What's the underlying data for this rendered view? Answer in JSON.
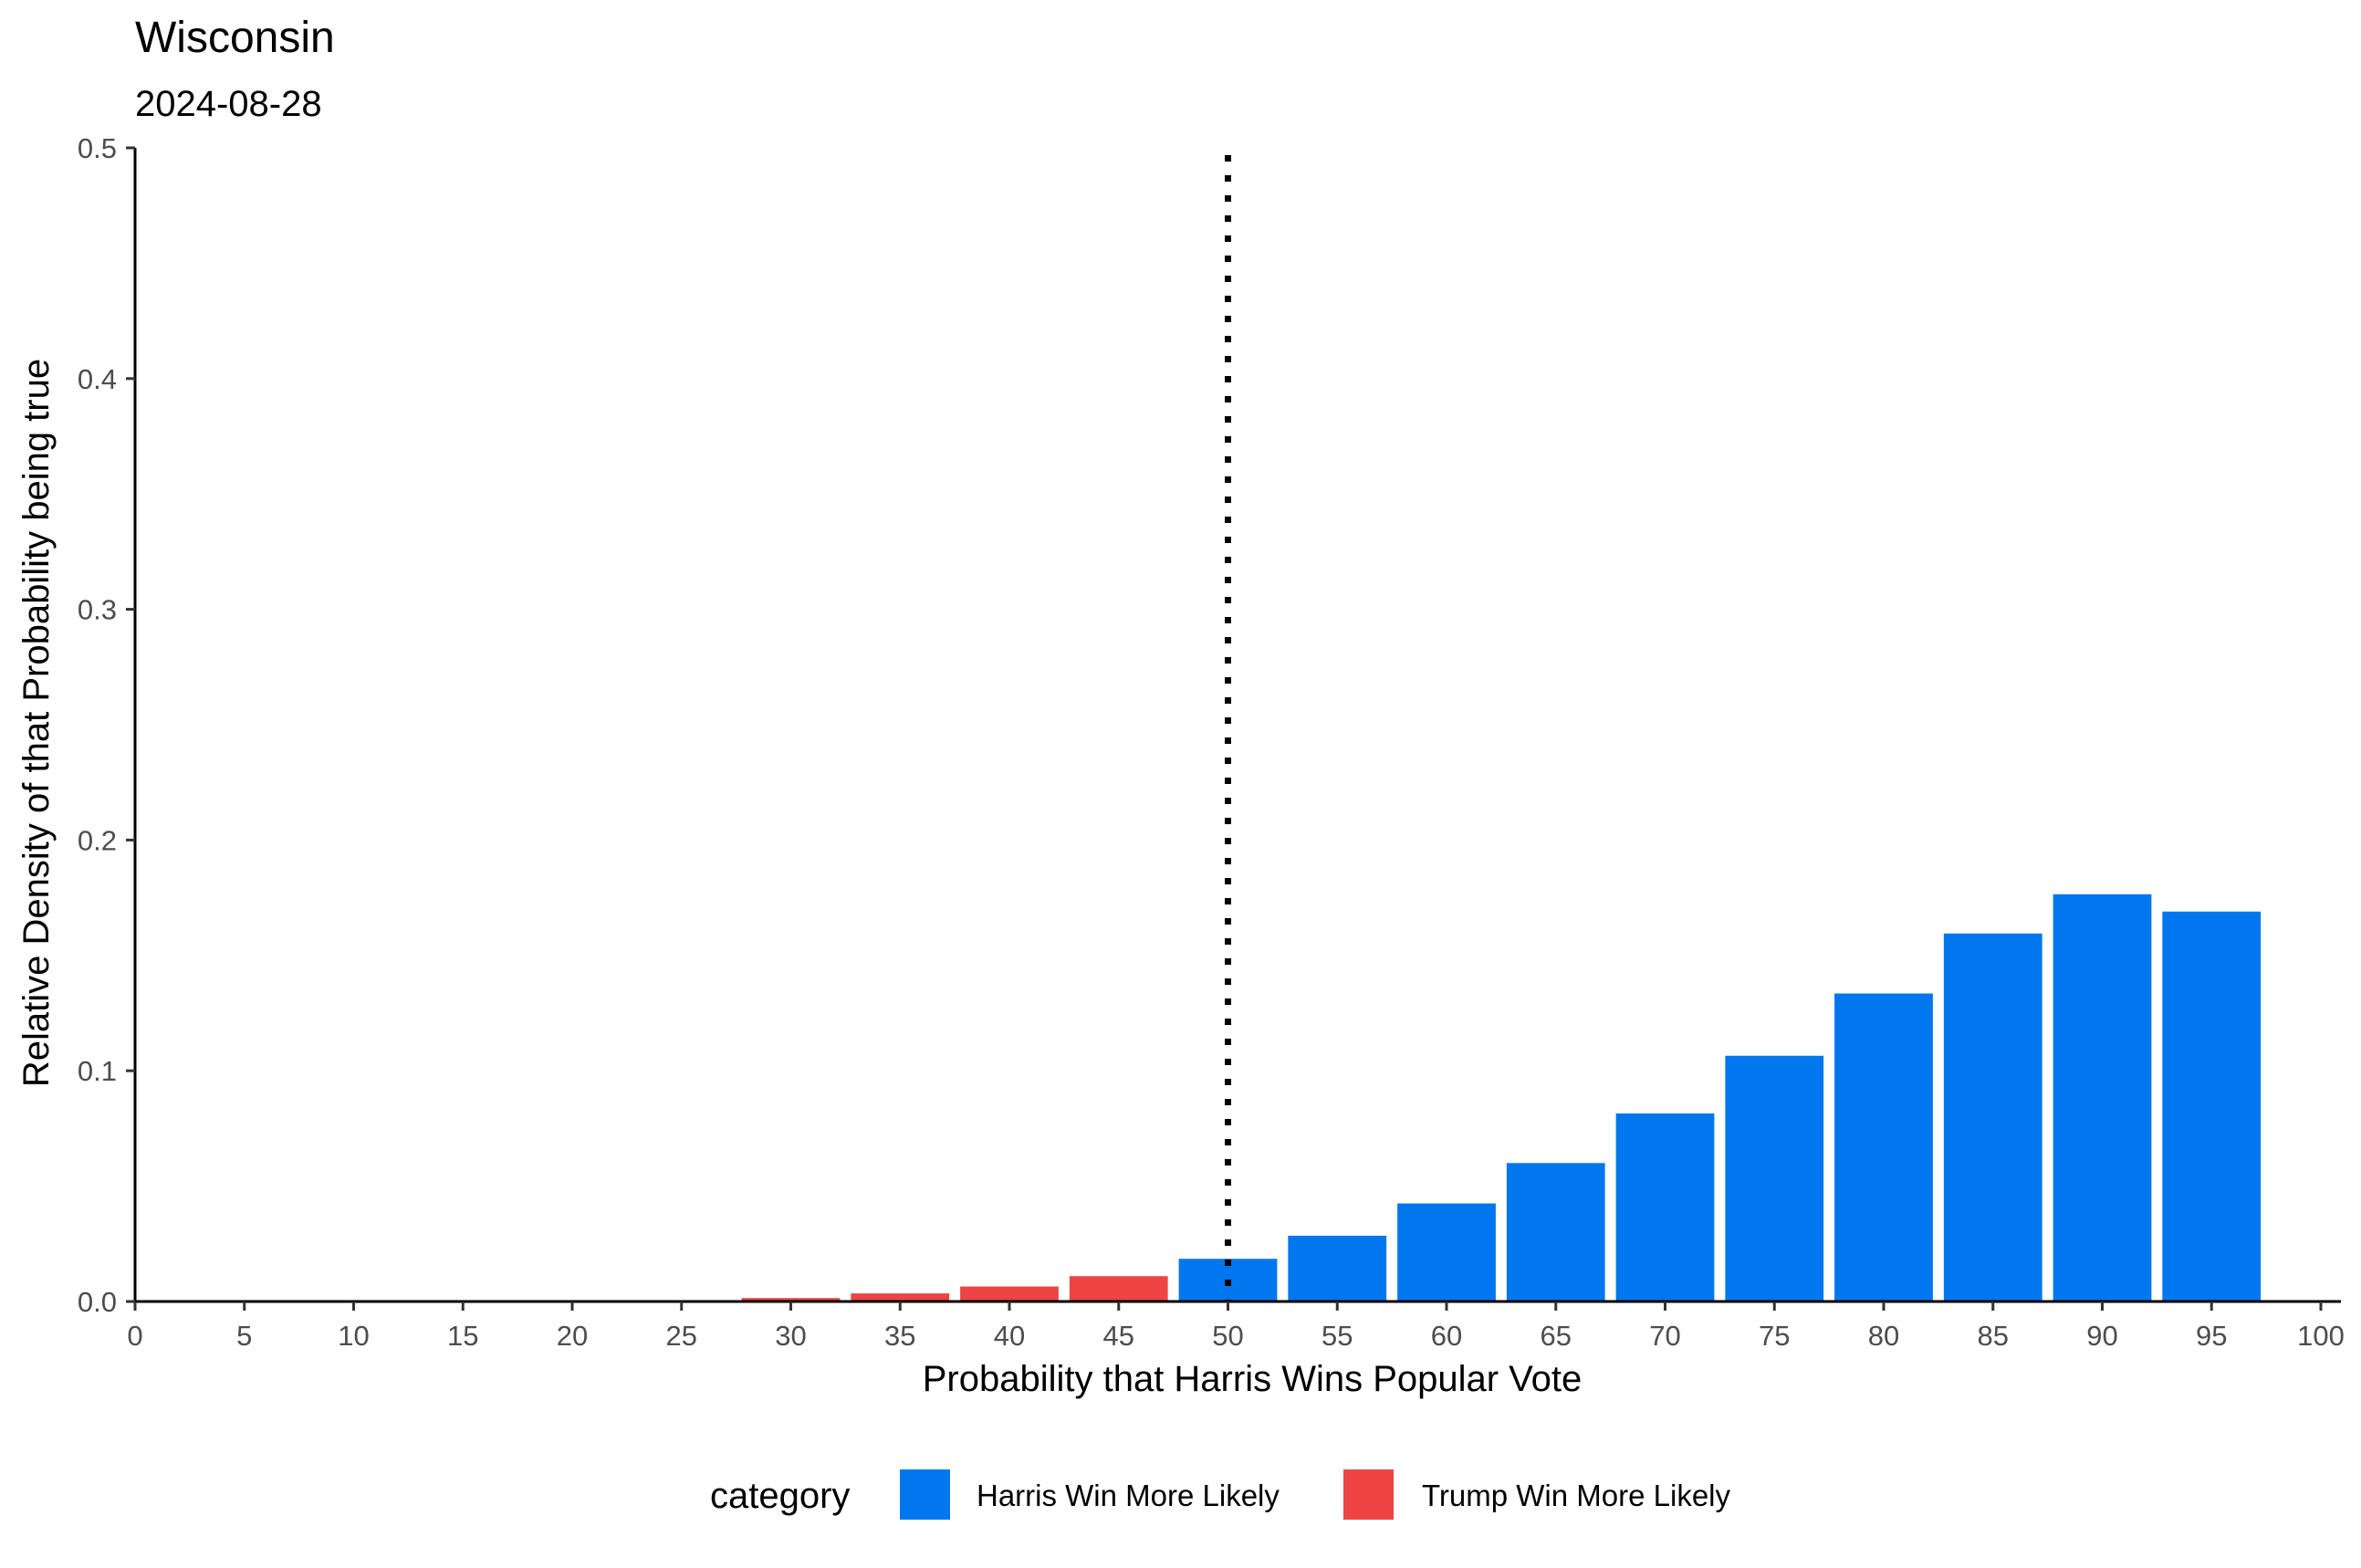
{
  "chart_data": {
    "type": "bar",
    "title": "Wisconsin",
    "subtitle": "2024-08-28",
    "xlabel": "Probability that Harris Wins Popular Vote",
    "ylabel": "Relative Density of that Probability being true",
    "xlim": [
      0,
      100
    ],
    "ylim": [
      0,
      0.5
    ],
    "x_ticks": [
      "0",
      "5",
      "10",
      "15",
      "20",
      "25",
      "30",
      "35",
      "40",
      "45",
      "50",
      "55",
      "60",
      "65",
      "70",
      "75",
      "80",
      "85",
      "90",
      "95",
      "100"
    ],
    "y_ticks": [
      "0.0",
      "0.1",
      "0.2",
      "0.3",
      "0.4",
      "0.5"
    ],
    "reference_line": {
      "x": 50,
      "style": "dotted",
      "color": "#000000"
    },
    "legend": {
      "title": "category",
      "position": "bottom",
      "entries": [
        {
          "label": "Harris Win More Likely",
          "color": "#0077EE"
        },
        {
          "label": "Trump Win More Likely",
          "color": "#EE4444"
        }
      ]
    },
    "series": [
      {
        "name": "Trump Win More Likely",
        "color": "#EE4444",
        "x": [
          30,
          35,
          40,
          45
        ],
        "values": [
          0.0015,
          0.0035,
          0.0065,
          0.011
        ]
      },
      {
        "name": "Harris Win More Likely",
        "color": "#0077EE",
        "x": [
          50,
          55,
          60,
          65,
          70,
          75,
          80,
          85,
          90,
          95
        ],
        "values": [
          0.0185,
          0.0285,
          0.0425,
          0.06,
          0.0815,
          0.1065,
          0.1335,
          0.1595,
          0.1765,
          0.169
        ]
      }
    ],
    "grid": false
  }
}
